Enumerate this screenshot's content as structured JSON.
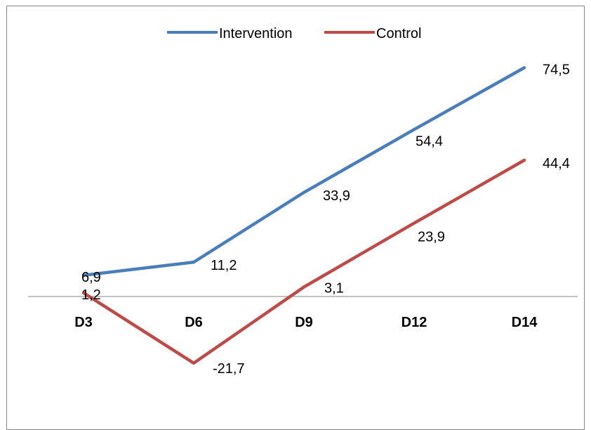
{
  "chart_data": {
    "type": "line",
    "categories": [
      "D3",
      "D6",
      "D9",
      "D12",
      "D14"
    ],
    "series": [
      {
        "name": "Intervention",
        "color": "#4a7ebb",
        "values": [
          6.9,
          11.2,
          33.9,
          54.4,
          74.5
        ],
        "labels": [
          "6,9",
          "11,2",
          "33,9",
          "54,4",
          "74,5"
        ]
      },
      {
        "name": "Control",
        "color": "#be4b48",
        "values": [
          1.2,
          -21.7,
          3.1,
          23.9,
          44.4
        ],
        "labels": [
          "1,2",
          "-21,7",
          "3,1",
          "23,9",
          "44,4"
        ]
      }
    ],
    "ylim": [
      -40,
      80
    ],
    "grid": false,
    "legend": "top",
    "axis_color": "#868686"
  }
}
